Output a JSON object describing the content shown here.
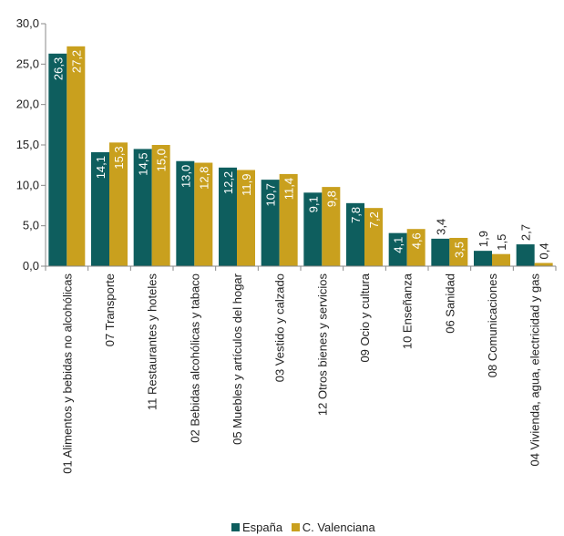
{
  "chart_data": {
    "type": "bar",
    "categories": [
      "01 Alimentos y bebidas no alcohólicas",
      "07 Transporte",
      "11 Restaurantes y hoteles",
      "02 Bebidas alcohólicas y tabaco",
      "05 Muebles y artículos del hogar",
      "03 Vestido y calzado",
      "12 Otros bienes y servicios",
      "09 Ocio y cultura",
      "10 Enseñanza",
      "06 Sanidad",
      "08 Comunicaciones",
      "04 Vivienda, agua, electricidad y gas"
    ],
    "series": [
      {
        "name": "España",
        "values": [
          26.3,
          14.1,
          14.5,
          13.0,
          12.2,
          10.7,
          9.1,
          7.8,
          4.1,
          3.4,
          1.9,
          2.7
        ],
        "labels": [
          "26,3",
          "14,1",
          "14,5",
          "13,0",
          "12,2",
          "10,7",
          "9,1",
          "7,8",
          "4,1",
          "3,4",
          "1,9",
          "2,7"
        ],
        "color": "#0e5e5e"
      },
      {
        "name": "C. Valenciana",
        "values": [
          27.2,
          15.3,
          15.0,
          12.8,
          11.9,
          11.4,
          9.8,
          7.2,
          4.6,
          3.5,
          1.5,
          0.4
        ],
        "labels": [
          "27,2",
          "15,3",
          "15,0",
          "12,8",
          "11,9",
          "11,4",
          "9,8",
          "7,2",
          "4,6",
          "3,5",
          "1,5",
          "0,4"
        ],
        "color": "#c9a01e"
      }
    ],
    "ylim": [
      0,
      30
    ],
    "yticks": [
      0,
      5,
      10,
      15,
      20,
      25,
      30
    ],
    "ytick_labels": [
      "0,0",
      "5,0",
      "10,0",
      "15,0",
      "20,0",
      "25,0",
      "30,0"
    ],
    "grid": false,
    "legend": "bottom"
  }
}
